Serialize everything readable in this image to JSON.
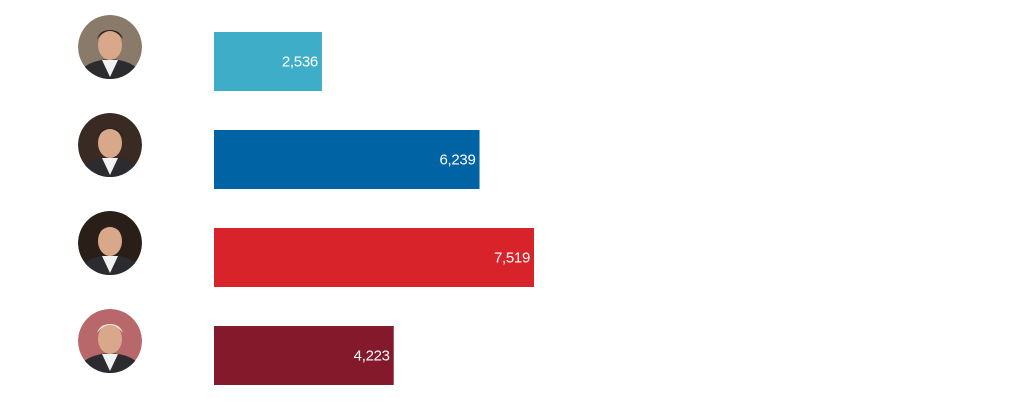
{
  "chart_data": {
    "type": "bar",
    "orientation": "horizontal",
    "categories": [
      null,
      null,
      null,
      null
    ],
    "values": [
      2536,
      6239,
      7519,
      4223
    ],
    "value_labels": [
      "2,536",
      "6,239",
      "7,519",
      "4,223"
    ],
    "colors": [
      "#3eaec8",
      "#0063a3",
      "#d8232a",
      "#85192c"
    ]
  }
}
